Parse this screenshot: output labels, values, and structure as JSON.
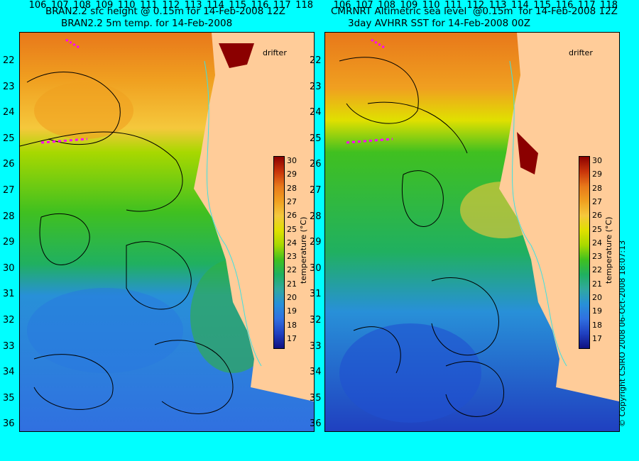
{
  "left_panel": {
    "title_line1": "BRAN2.2 sfc height @ 0.15m for 14-Feb-2008 12Z",
    "title_line2": "BRAN2.2 5m temp. for 14-Feb-2008"
  },
  "right_panel": {
    "title_line1": "CMRNRT Altimetric sea level  @0.15m  for 14-Feb-2008 12Z",
    "title_line2": "3day AVHRR SST for 14-Feb-2008 00Z"
  },
  "drifter_label": "drifter",
  "latitude_labels": [
    "22",
    "23",
    "24",
    "25",
    "26",
    "27",
    "28",
    "29",
    "30",
    "31",
    "32",
    "33",
    "34",
    "35",
    "36"
  ],
  "longitude_labels": [
    "106",
    "107",
    "108",
    "109",
    "110",
    "111",
    "112",
    "113",
    "114",
    "115",
    "116",
    "117",
    "118"
  ],
  "colorbar": {
    "title": "temperature (°C)",
    "ticks": [
      "30",
      "29",
      "28",
      "27",
      "26",
      "25",
      "24",
      "23",
      "22",
      "21",
      "20",
      "19",
      "18",
      "17"
    ],
    "colors": [
      "#8b0000",
      "#c8340a",
      "#e8781a",
      "#f0a020",
      "#f5c83c",
      "#e0e000",
      "#a8d800",
      "#40c020",
      "#20b060",
      "#30a8a0",
      "#2890d8",
      "#3070e0",
      "#2040c0",
      "#101080"
    ]
  },
  "copyright": "© Copyright CSIRO 2008   06-Oct-2008 18:07:13",
  "colors": {
    "background": "#00ffff",
    "land": "#ffcc99",
    "magenta": "#ff00ff"
  }
}
